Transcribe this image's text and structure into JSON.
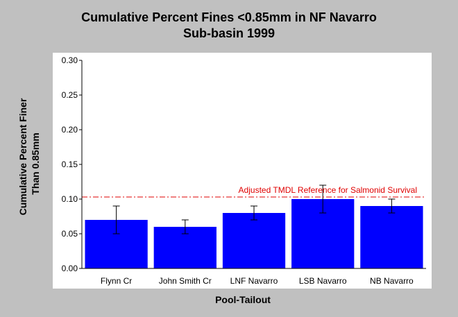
{
  "chart_data": {
    "type": "bar",
    "title_line1": "Cumulative Percent Fines <0.85mm in NF Navarro",
    "title_line2": "Sub-basin 1999",
    "xlabel": "Pool-Tailout",
    "ylabel_line1": "Cumulative Percent Finer",
    "ylabel_line2": "Than 0.85mm",
    "categories": [
      "Flynn Cr",
      "John Smith Cr",
      "LNF Navarro",
      "LSB Navarro",
      "NB Navarro"
    ],
    "values": [
      0.07,
      0.06,
      0.08,
      0.1,
      0.09
    ],
    "error_low": [
      0.05,
      0.05,
      0.07,
      0.08,
      0.08
    ],
    "error_high": [
      0.09,
      0.07,
      0.09,
      0.12,
      0.1
    ],
    "ylim": [
      0,
      0.3
    ],
    "yticks": [
      "0.00",
      "0.05",
      "0.10",
      "0.15",
      "0.20",
      "0.25",
      "0.30"
    ],
    "reference": {
      "value": 0.103,
      "label": "Adjusted TMDL Reference for Salmonid Survival",
      "color": "#e00000"
    },
    "bar_color": "#0000ff",
    "plot_background": "#ffffff",
    "grid": false
  }
}
